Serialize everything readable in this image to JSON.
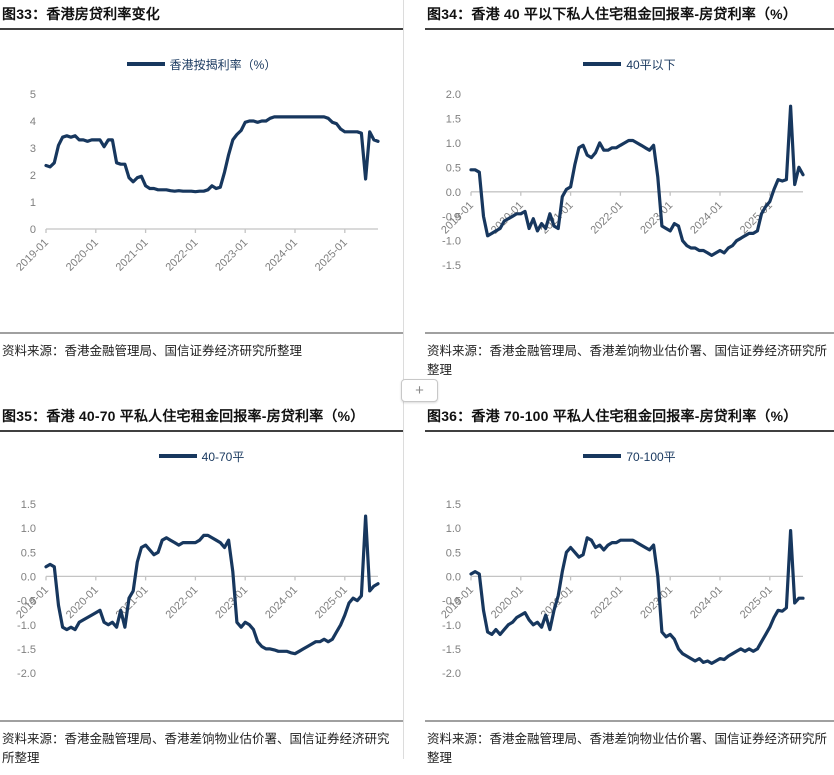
{
  "page": {
    "plus_button_label": "+"
  },
  "colors": {
    "line": "#17375E",
    "axis": "#c4c4c4",
    "tick_text": "#7f7f7f",
    "legend_text": "#17375E",
    "title_underline": "#404040",
    "divider": "#a0a0a0",
    "cell_border": "#dcdcdc"
  },
  "chart_data": [
    {
      "type": "line",
      "fig_no": "图33",
      "title": "图33：香港房贷利率变化",
      "legend": "香港按揭利率（%）",
      "source": "资料来源：香港金融管理局、国信证券经济研究所整理",
      "x_start": "2019-01",
      "x_freq": "monthly",
      "x_tick_labels": [
        "2019-01",
        "2020-01",
        "2021-01",
        "2022-01",
        "2023-01",
        "2024-01",
        "2025-01"
      ],
      "x_tick_positions": [
        0,
        12,
        24,
        36,
        48,
        60,
        72
      ],
      "ylim": [
        0,
        5
      ],
      "ytick_step": 1,
      "ytick_decimals": 0,
      "axis_at": 0,
      "grid": false,
      "legend_position": "top-center",
      "values": [
        2.35,
        2.3,
        2.45,
        3.1,
        3.4,
        3.45,
        3.4,
        3.45,
        3.3,
        3.3,
        3.25,
        3.3,
        3.3,
        3.3,
        3.05,
        3.3,
        3.3,
        2.45,
        2.4,
        2.4,
        1.9,
        1.75,
        1.9,
        1.95,
        1.6,
        1.5,
        1.5,
        1.45,
        1.45,
        1.45,
        1.42,
        1.4,
        1.42,
        1.4,
        1.4,
        1.4,
        1.38,
        1.4,
        1.4,
        1.45,
        1.6,
        1.5,
        1.55,
        2.1,
        2.75,
        3.3,
        3.5,
        3.65,
        3.95,
        4.0,
        4.0,
        3.95,
        4.0,
        4.0,
        4.1,
        4.15,
        4.15,
        4.15,
        4.15,
        4.15,
        4.15,
        4.15,
        4.15,
        4.15,
        4.15,
        4.15,
        4.15,
        4.15,
        4.1,
        3.95,
        3.9,
        3.7,
        3.6,
        3.6,
        3.6,
        3.6,
        3.55,
        1.85,
        3.6,
        3.3,
        3.25
      ]
    },
    {
      "type": "line",
      "fig_no": "图34",
      "title": "图34：香港 40 平以下私人住宅租金回报率-房贷利率（%）",
      "legend": "40平以下",
      "source": "资料来源：香港金融管理局、香港差饷物业估价署、国信证券经济研究所整理",
      "x_start": "2019-01",
      "x_freq": "monthly",
      "x_tick_labels": [
        "2019-01",
        "2020-01",
        "2021-01",
        "2022-01",
        "2023-01",
        "2024-01",
        "2025-01"
      ],
      "x_tick_positions": [
        0,
        12,
        24,
        36,
        48,
        60,
        72
      ],
      "ylim": [
        -1.5,
        2.0
      ],
      "ytick_step": 0.5,
      "ytick_decimals": 1,
      "axis_at": 0,
      "grid": false,
      "legend_position": "top-center",
      "values": [
        0.45,
        0.45,
        0.4,
        -0.5,
        -0.9,
        -0.85,
        -0.8,
        -0.75,
        -0.6,
        -0.55,
        -0.5,
        -0.45,
        -0.45,
        -0.4,
        -0.75,
        -0.55,
        -0.8,
        -0.65,
        -0.75,
        -0.45,
        -0.7,
        -0.75,
        -0.1,
        0.05,
        0.1,
        0.55,
        0.9,
        0.95,
        0.75,
        0.7,
        0.8,
        1.0,
        0.85,
        0.85,
        0.9,
        0.9,
        0.95,
        1.0,
        1.05,
        1.05,
        1.0,
        0.95,
        0.9,
        0.85,
        0.95,
        0.3,
        -0.7,
        -0.75,
        -0.8,
        -0.65,
        -0.7,
        -1.0,
        -1.1,
        -1.15,
        -1.15,
        -1.2,
        -1.2,
        -1.25,
        -1.3,
        -1.25,
        -1.2,
        -1.25,
        -1.15,
        -1.1,
        -1.0,
        -0.95,
        -0.9,
        -0.85,
        -0.85,
        -0.8,
        -0.45,
        -0.3,
        -0.2,
        0.05,
        0.25,
        0.22,
        0.25,
        1.75,
        0.15,
        0.5,
        0.35
      ]
    },
    {
      "type": "line",
      "fig_no": "图35",
      "title": "图35：香港 40-70 平私人住宅租金回报率-房贷利率（%）",
      "legend": "40-70平",
      "source": "资料来源：香港金融管理局、香港差饷物业估价署、国信证券经济研究所整理",
      "x_start": "2019-01",
      "x_freq": "monthly",
      "x_tick_labels": [
        "2019-01",
        "2020-01",
        "2021-01",
        "2022-01",
        "2023-01",
        "2024-01",
        "2025-01"
      ],
      "x_tick_positions": [
        0,
        12,
        24,
        36,
        48,
        60,
        72
      ],
      "ylim": [
        -2.0,
        1.5
      ],
      "ytick_step": 0.5,
      "ytick_decimals": 1,
      "axis_at": 0,
      "grid": false,
      "legend_position": "top-center",
      "values": [
        0.2,
        0.25,
        0.2,
        -0.6,
        -1.05,
        -1.1,
        -1.05,
        -1.1,
        -0.95,
        -0.9,
        -0.85,
        -0.8,
        -0.75,
        -0.7,
        -0.95,
        -1.0,
        -0.95,
        -1.05,
        -0.7,
        -1.05,
        -0.45,
        -0.3,
        0.3,
        0.6,
        0.65,
        0.55,
        0.45,
        0.5,
        0.75,
        0.8,
        0.75,
        0.7,
        0.65,
        0.7,
        0.7,
        0.7,
        0.7,
        0.75,
        0.85,
        0.85,
        0.8,
        0.75,
        0.7,
        0.6,
        0.75,
        0.1,
        -0.95,
        -1.05,
        -0.95,
        -1.0,
        -1.1,
        -1.35,
        -1.45,
        -1.5,
        -1.5,
        -1.52,
        -1.55,
        -1.55,
        -1.55,
        -1.58,
        -1.6,
        -1.55,
        -1.5,
        -1.45,
        -1.4,
        -1.35,
        -1.35,
        -1.3,
        -1.35,
        -1.3,
        -1.15,
        -1.0,
        -0.8,
        -0.55,
        -0.45,
        -0.5,
        -0.4,
        1.25,
        -0.3,
        -0.2,
        -0.15
      ]
    },
    {
      "type": "line",
      "fig_no": "图36",
      "title": "图36：香港 70-100 平私人住宅租金回报率-房贷利率（%）",
      "legend": "70-100平",
      "source": "资料来源：香港金融管理局、香港差饷物业估价署、国信证券经济研究所整理",
      "x_start": "2019-01",
      "x_freq": "monthly",
      "x_tick_labels": [
        "2019-01",
        "2020-01",
        "2021-01",
        "2022-01",
        "2023-01",
        "2024-01",
        "2025-01"
      ],
      "x_tick_positions": [
        0,
        12,
        24,
        36,
        48,
        60,
        72
      ],
      "ylim": [
        -2.0,
        1.5
      ],
      "ytick_step": 0.5,
      "ytick_decimals": 1,
      "axis_at": 0,
      "grid": false,
      "legend_position": "top-center",
      "values": [
        0.05,
        0.1,
        0.05,
        -0.7,
        -1.15,
        -1.2,
        -1.1,
        -1.2,
        -1.1,
        -1.0,
        -0.95,
        -0.85,
        -0.8,
        -0.75,
        -0.9,
        -1.0,
        -0.95,
        -1.05,
        -0.8,
        -1.1,
        -0.7,
        -0.4,
        0.1,
        0.5,
        0.6,
        0.5,
        0.4,
        0.45,
        0.8,
        0.75,
        0.6,
        0.65,
        0.55,
        0.65,
        0.7,
        0.7,
        0.75,
        0.75,
        0.75,
        0.75,
        0.7,
        0.65,
        0.6,
        0.55,
        0.65,
        0.0,
        -1.15,
        -1.25,
        -1.2,
        -1.3,
        -1.5,
        -1.6,
        -1.65,
        -1.7,
        -1.75,
        -1.7,
        -1.78,
        -1.75,
        -1.8,
        -1.75,
        -1.7,
        -1.72,
        -1.65,
        -1.6,
        -1.55,
        -1.5,
        -1.55,
        -1.5,
        -1.55,
        -1.5,
        -1.35,
        -1.2,
        -1.05,
        -0.85,
        -0.7,
        -0.72,
        -0.65,
        0.95,
        -0.55,
        -0.45,
        -0.45
      ]
    }
  ]
}
